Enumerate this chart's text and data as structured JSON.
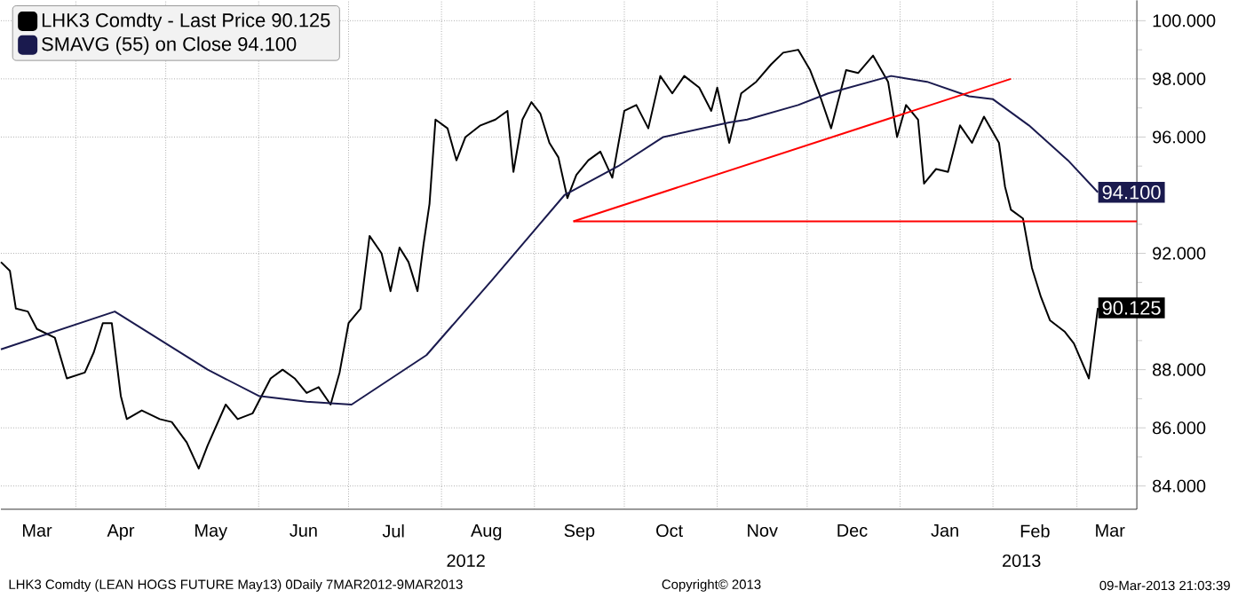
{
  "chart_data": {
    "type": "line",
    "xlim": [
      "2012-03-07",
      "2013-03-21"
    ],
    "ylim": [
      83.2,
      100.7
    ],
    "xticks": [
      {
        "value": "2012-03-19",
        "label": "Mar"
      },
      {
        "value": "2012-04-16",
        "label": "Apr"
      },
      {
        "value": "2012-05-16",
        "label": "May"
      },
      {
        "value": "2012-06-16",
        "label": "Jun"
      },
      {
        "value": "2012-07-16",
        "label": "Jul"
      },
      {
        "value": "2012-08-16",
        "label": "Aug"
      },
      {
        "value": "2012-09-16",
        "label": "Sep"
      },
      {
        "value": "2012-10-16",
        "label": "Oct"
      },
      {
        "value": "2012-11-16",
        "label": "Nov"
      },
      {
        "value": "2012-12-16",
        "label": "Dec"
      },
      {
        "value": "2013-01-16",
        "label": "Jan"
      },
      {
        "value": "2013-02-15",
        "label": "Feb"
      },
      {
        "value": "2013-03-12",
        "label": "Mar"
      },
      {
        "value": "2012-04-01",
        "label": null
      },
      {
        "value": "2012-05-01",
        "label": null
      },
      {
        "value": "2012-06-01",
        "label": null
      },
      {
        "value": "2012-07-01",
        "label": null
      },
      {
        "value": "2012-08-01",
        "label": null
      },
      {
        "value": "2012-09-01",
        "label": null
      },
      {
        "value": "2012-10-01",
        "label": null
      },
      {
        "value": "2012-11-01",
        "label": null
      },
      {
        "value": "2012-12-01",
        "label": null
      },
      {
        "value": "2013-01-01",
        "label": null
      },
      {
        "value": "2013-02-01",
        "label": null
      },
      {
        "value": "2013-03-01",
        "label": null
      }
    ],
    "yticks": [
      {
        "value": 84,
        "label": "84.000"
      },
      {
        "value": 86,
        "label": "86.000"
      },
      {
        "value": 88,
        "label": "88.000"
      },
      {
        "value": 90,
        "label": null
      },
      {
        "value": 92,
        "label": "92.000"
      },
      {
        "value": 94,
        "label": null
      },
      {
        "value": 96,
        "label": "96.000"
      },
      {
        "value": 98,
        "label": "98.000"
      },
      {
        "value": 100,
        "label": "100.000"
      },
      {
        "value": 85,
        "label": null
      },
      {
        "value": 87,
        "label": null
      },
      {
        "value": 89,
        "label": null
      },
      {
        "value": 91,
        "label": null
      },
      {
        "value": 93,
        "label": null
      },
      {
        "value": 95,
        "label": null
      },
      {
        "value": 97,
        "label": null
      },
      {
        "value": 99,
        "label": null
      }
    ],
    "grid": true,
    "legend": "top left",
    "series": [
      {
        "name": "LHK3 Comdty - Last Price  90.125",
        "color": "#000000",
        "x": [
          "2012-03-07",
          "2012-03-10",
          "2012-03-12",
          "2012-03-16",
          "2012-03-19",
          "2012-03-25",
          "2012-03-29",
          "2012-04-04",
          "2012-04-07",
          "2012-04-10",
          "2012-04-13",
          "2012-04-16",
          "2012-04-18",
          "2012-04-23",
          "2012-04-29",
          "2012-05-03",
          "2012-05-08",
          "2012-05-12",
          "2012-05-15",
          "2012-05-18",
          "2012-05-21",
          "2012-05-25",
          "2012-05-30",
          "2012-06-02",
          "2012-06-05",
          "2012-06-09",
          "2012-06-13",
          "2012-06-17",
          "2012-06-21",
          "2012-06-25",
          "2012-06-28",
          "2012-07-01",
          "2012-07-05",
          "2012-07-08",
          "2012-07-12",
          "2012-07-15",
          "2012-07-18",
          "2012-07-21",
          "2012-07-24",
          "2012-07-26",
          "2012-07-28",
          "2012-07-30",
          "2012-08-03",
          "2012-08-06",
          "2012-08-09",
          "2012-08-14",
          "2012-08-19",
          "2012-08-23",
          "2012-08-25",
          "2012-08-28",
          "2012-08-31",
          "2012-09-03",
          "2012-09-06",
          "2012-09-09",
          "2012-09-12",
          "2012-09-15",
          "2012-09-19",
          "2012-09-23",
          "2012-09-27",
          "2012-10-01",
          "2012-10-05",
          "2012-10-09",
          "2012-10-13",
          "2012-10-17",
          "2012-10-21",
          "2012-10-26",
          "2012-10-30",
          "2012-11-01",
          "2012-11-05",
          "2012-11-09",
          "2012-11-14",
          "2012-11-19",
          "2012-11-23",
          "2012-11-28",
          "2012-12-02",
          "2012-12-05",
          "2012-12-09",
          "2012-12-14",
          "2012-12-18",
          "2012-12-23",
          "2012-12-28",
          "2012-12-31",
          "2013-01-03",
          "2013-01-07",
          "2013-01-09",
          "2013-01-13",
          "2013-01-17",
          "2013-01-21",
          "2013-01-25",
          "2013-01-29",
          "2013-02-03",
          "2013-02-05",
          "2013-02-07",
          "2013-02-11",
          "2013-02-14",
          "2013-02-17",
          "2013-02-20",
          "2013-02-25",
          "2013-02-28",
          "2013-03-05",
          "2013-03-08"
        ],
        "values": [
          91.7,
          91.4,
          90.1,
          90.0,
          89.4,
          89.1,
          87.7,
          87.9,
          88.6,
          89.6,
          89.6,
          87.1,
          86.3,
          86.6,
          86.3,
          86.2,
          85.5,
          84.6,
          85.4,
          86.1,
          86.8,
          86.3,
          86.5,
          87.1,
          87.7,
          88.0,
          87.7,
          87.2,
          87.4,
          86.8,
          87.9,
          89.6,
          90.1,
          92.6,
          92.0,
          90.7,
          92.2,
          91.7,
          90.7,
          92.3,
          93.7,
          96.6,
          96.3,
          95.2,
          96.0,
          96.4,
          96.6,
          96.9,
          94.8,
          96.6,
          97.2,
          96.8,
          95.8,
          95.3,
          93.9,
          94.7,
          95.2,
          95.5,
          94.6,
          96.9,
          97.1,
          96.3,
          98.1,
          97.5,
          98.1,
          97.7,
          96.9,
          97.7,
          95.8,
          97.5,
          97.9,
          98.5,
          98.9,
          99.0,
          98.3,
          97.5,
          96.3,
          98.3,
          98.2,
          98.8,
          97.9,
          96.0,
          97.1,
          96.6,
          94.4,
          94.9,
          94.8,
          96.4,
          95.8,
          96.7,
          95.8,
          94.3,
          93.5,
          93.2,
          91.5,
          90.5,
          89.7,
          89.3,
          88.9,
          87.7,
          90.125
        ],
        "value_labels": [
          null,
          null,
          null,
          null,
          null,
          null,
          null,
          null,
          null,
          null,
          null,
          null,
          null,
          null,
          null,
          null,
          null,
          null,
          null,
          null,
          null,
          null,
          null,
          null,
          null,
          null,
          null,
          null,
          null,
          null,
          null,
          null,
          null,
          null,
          null,
          null,
          null,
          null,
          null,
          null,
          null,
          null,
          null,
          null,
          null,
          null,
          null,
          null,
          null,
          null,
          null,
          null,
          null,
          null,
          null,
          null,
          null,
          null,
          null,
          null,
          null,
          null,
          null,
          null,
          null,
          null,
          null,
          null,
          null,
          null,
          null,
          null,
          null,
          null,
          null,
          null,
          null,
          null,
          null,
          null,
          null,
          null,
          null,
          null,
          null,
          null,
          null,
          null,
          null,
          null,
          null,
          null,
          null,
          null,
          null,
          null,
          null,
          null,
          null,
          null,
          "90.125"
        ]
      },
      {
        "name": "SMAVG (55) on Close  94.100",
        "color": "#1a1a4e",
        "x": [
          "2012-03-07",
          "2012-04-14",
          "2012-05-15",
          "2012-06-01",
          "2012-06-17",
          "2012-07-02",
          "2012-07-27",
          "2012-08-18",
          "2012-09-11",
          "2012-09-29",
          "2012-10-14",
          "2012-11-05",
          "2012-11-11",
          "2012-11-28",
          "2012-12-08",
          "2012-12-29",
          "2013-01-10",
          "2013-01-24",
          "2013-02-01",
          "2013-02-13",
          "2013-02-26",
          "2013-03-08"
        ],
        "values": [
          88.7,
          90.0,
          88.0,
          87.1,
          86.9,
          86.8,
          88.5,
          91.1,
          94.0,
          95.0,
          96.0,
          96.5,
          96.6,
          97.1,
          97.5,
          98.1,
          97.9,
          97.4,
          97.3,
          96.4,
          95.2,
          94.1
        ],
        "value_labels": [
          null,
          null,
          null,
          null,
          null,
          null,
          null,
          null,
          null,
          null,
          null,
          null,
          null,
          null,
          null,
          null,
          null,
          null,
          null,
          null,
          null,
          "94.100"
        ]
      },
      {
        "color": "#ff0000",
        "x": [
          "2012-09-14",
          "2013-02-07"
        ],
        "values": [
          93.1,
          98.0
        ]
      },
      {
        "color": "#ff0000",
        "x": [
          "2012-09-14",
          "2013-03-21"
        ],
        "values": [
          93.1,
          93.1
        ]
      }
    ],
    "annotations": [
      "2012",
      "2013",
      "LHK3 Comdty (LEAN HOGS FUTURE  May13) 0Daily 7MAR2012-9MAR2013",
      "Copyright© 2013",
      "09-Mar-2013 21:03:39"
    ]
  }
}
